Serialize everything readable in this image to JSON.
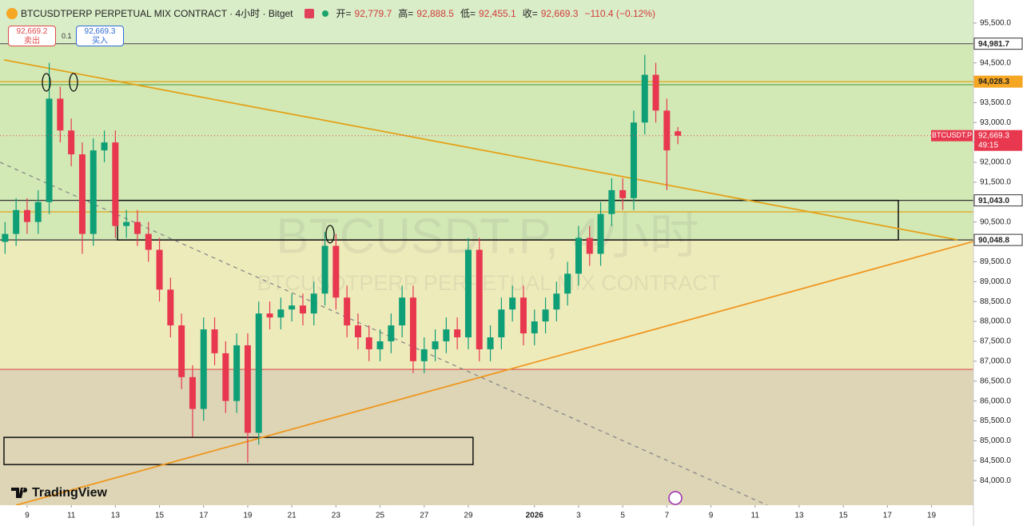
{
  "chart_data": {
    "type": "candlestick",
    "title": "BTCUSDTPERP PERPETUAL MIX CONTRACT · 4小时 · Bitget",
    "legend_keys": [
      "开=",
      "高=",
      "低=",
      "收="
    ],
    "legend_values": [
      92779.7,
      92888.5,
      92455.1,
      92669.3
    ],
    "legend_value_labels": [
      "92,779.7",
      "92,888.5",
      "92,455.1",
      "92,669.3"
    ],
    "change_label": "−110.4 (−0.12%)",
    "sell_price": "92,669.2",
    "sell_text": "卖出",
    "quantity": "0.1",
    "buy_price": "92,669.3",
    "buy_text": "买入",
    "watermark": "BTCUSDT.P, 4小时",
    "watermark_sub": "BTCUSDTPERP PERPETUAL MIX CONTRACT",
    "brand": "TradingView",
    "up_color": "#0f9f77",
    "down_color": "#e8384f",
    "open": [
      90000,
      90200,
      90800,
      90500,
      91000,
      93600,
      92800,
      92200,
      90200,
      92300,
      92500,
      90400,
      90500,
      90200,
      89800,
      88800,
      87900,
      86600,
      85800,
      87800,
      87200,
      86000,
      87400,
      85200,
      88200,
      88100,
      88300,
      88400,
      88200,
      88700,
      89900,
      88600,
      87900,
      87600,
      87300,
      87500,
      87900,
      88600,
      87000,
      87300,
      87500,
      87800,
      87600,
      89800,
      87300,
      87600,
      88300,
      88600,
      87700,
      88000,
      88300,
      88700,
      89200,
      90100,
      89700,
      90700,
      91300,
      91100,
      93000,
      94200,
      93300,
      92779.7
    ],
    "high": [
      90500,
      91100,
      91100,
      91300,
      94500,
      93900,
      93100,
      92500,
      92600,
      92800,
      92800,
      90800,
      90800,
      90500,
      90100,
      89100,
      88200,
      86900,
      88100,
      88100,
      87500,
      87700,
      87700,
      88500,
      88500,
      88600,
      88700,
      88700,
      89000,
      90250,
      90200,
      88900,
      88200,
      87900,
      87800,
      88200,
      88900,
      88900,
      87600,
      87800,
      88100,
      88100,
      90100,
      90100,
      87900,
      88600,
      88900,
      88900,
      88300,
      88600,
      89000,
      89500,
      90400,
      90400,
      91000,
      91600,
      91600,
      93300,
      94700,
      94500,
      93600,
      92888.5
    ],
    "low": [
      89700,
      89900,
      90200,
      90200,
      90700,
      92500,
      91900,
      89700,
      89900,
      92000,
      90100,
      90100,
      89900,
      89500,
      88500,
      87600,
      86300,
      85100,
      85500,
      86900,
      85700,
      85700,
      84450,
      84900,
      87800,
      87800,
      88000,
      87900,
      87900,
      88400,
      88300,
      87600,
      87300,
      87000,
      87000,
      87200,
      87600,
      86700,
      86700,
      87000,
      87200,
      87300,
      87300,
      87000,
      87000,
      87300,
      88000,
      87400,
      87400,
      87700,
      88000,
      88400,
      88900,
      89400,
      89400,
      90400,
      90800,
      90800,
      92700,
      93000,
      91300,
      92455.1
    ],
    "close": [
      90200,
      90800,
      90500,
      91000,
      93600,
      92800,
      92200,
      90200,
      92300,
      92500,
      90400,
      90500,
      90200,
      89800,
      88800,
      87900,
      86600,
      85800,
      87800,
      87200,
      86000,
      87400,
      85200,
      88200,
      88100,
      88300,
      88400,
      88200,
      88700,
      89900,
      88600,
      87900,
      87600,
      87300,
      87500,
      87900,
      88600,
      87000,
      87300,
      87500,
      87800,
      87600,
      89800,
      87300,
      87600,
      88300,
      88600,
      87700,
      88000,
      88300,
      88700,
      89200,
      90100,
      89700,
      90700,
      91300,
      91100,
      93000,
      94200,
      93300,
      92300,
      92669.3
    ],
    "xlim": [
      -0.46,
      87.8
    ],
    "xticks": [
      {
        "value": 2,
        "label": "9"
      },
      {
        "value": 6,
        "label": "11"
      },
      {
        "value": 10,
        "label": "13"
      },
      {
        "value": 14,
        "label": "15"
      },
      {
        "value": 18,
        "label": "17"
      },
      {
        "value": 22,
        "label": "19"
      },
      {
        "value": 26,
        "label": "21"
      },
      {
        "value": 30,
        "label": "23"
      },
      {
        "value": 34,
        "label": "25"
      },
      {
        "value": 38,
        "label": "27"
      },
      {
        "value": 42,
        "label": "29"
      },
      {
        "value": 48,
        "label": "2026"
      },
      {
        "value": 52,
        "label": "3"
      },
      {
        "value": 56,
        "label": "5"
      },
      {
        "value": 60,
        "label": "7"
      },
      {
        "value": 64,
        "label": "9"
      },
      {
        "value": 68,
        "label": "11"
      },
      {
        "value": 72,
        "label": "13"
      },
      {
        "value": 76,
        "label": "15"
      },
      {
        "value": 80,
        "label": "17"
      },
      {
        "value": 84,
        "label": "19"
      }
    ],
    "ylim": [
      83380,
      96080
    ],
    "yticks": [
      {
        "value": 95500,
        "label": "95,500.0"
      },
      {
        "value": 95000,
        "label": "95,000.0"
      },
      {
        "value": 94500,
        "label": "94,500.0"
      },
      {
        "value": 94000,
        "label": "94,000.0"
      },
      {
        "value": 93500,
        "label": "93,500.0"
      },
      {
        "value": 93000,
        "label": "93,000.0"
      },
      {
        "value": 92500,
        "label": "92,500.0"
      },
      {
        "value": 92000,
        "label": "92,000.0"
      },
      {
        "value": 91500,
        "label": "91,500.0"
      },
      {
        "value": 91000,
        "label": "91,000.0"
      },
      {
        "value": 90500,
        "label": "90,500.0"
      },
      {
        "value": 90000,
        "label": "90,000.0"
      },
      {
        "value": 89500,
        "label": "89,500.0"
      },
      {
        "value": 89000,
        "label": "89,000.0"
      },
      {
        "value": 88500,
        "label": "88,500.0"
      },
      {
        "value": 88000,
        "label": "88,000.0"
      },
      {
        "value": 87500,
        "label": "87,500.0"
      },
      {
        "value": 87000,
        "label": "87,000.0"
      },
      {
        "value": 86500,
        "label": "86,500.0"
      },
      {
        "value": 86000,
        "label": "86,000.0"
      },
      {
        "value": 85500,
        "label": "85,500.0"
      },
      {
        "value": 85000,
        "label": "85,000.0"
      },
      {
        "value": 84500,
        "label": "84,500.0"
      },
      {
        "value": 84000,
        "label": "84,000.0"
      }
    ],
    "background": "#d9edc8",
    "zones": [
      {
        "top": 94981.7,
        "bottom": 90048.8,
        "color": "#d3e9b5"
      },
      {
        "top": 90048.8,
        "bottom": 86795,
        "color": "#eeebbb"
      },
      {
        "top": 86795,
        "bottom": 83380,
        "color": "#ddd5b6"
      }
    ],
    "hlines": [
      {
        "value": 94981.7,
        "color": "#666666"
      },
      {
        "value": 94028.3,
        "color": "#e3a21a"
      },
      {
        "value": 93950,
        "color": "#6aa84f"
      },
      {
        "value": 91043,
        "color": "#333333"
      },
      {
        "value": 90755,
        "color": "#e3a21a"
      },
      {
        "value": 90048.8,
        "color": "#333333"
      },
      {
        "value": 86795,
        "color": "#d9534f"
      }
    ],
    "trendlines": [
      {
        "x": [
          -0.1,
          86.35
        ],
        "y": [
          94575,
          90052
        ],
        "color": "#e3a21a",
        "dash": false
      },
      {
        "x": [
          0.99,
          87.8
        ],
        "y": [
          83380,
          90010
        ],
        "color": "#f0961e",
        "dash": false
      },
      {
        "x": [
          -0.46,
          69.1
        ],
        "y": [
          92002,
          83380
        ],
        "color": "#888888",
        "dash": true
      }
    ],
    "boxes": [
      {
        "x": [
          10.19,
          80.99
        ],
        "y": [
          91043,
          90048.8
        ]
      },
      {
        "x": [
          -0.1,
          42.43
        ],
        "y": [
          85085,
          84402
        ]
      }
    ],
    "price_tags": [
      {
        "value": 94981.7,
        "label": "94,981.7",
        "bg": "#ffffff",
        "fg": "#222222"
      },
      {
        "value": 94028.3,
        "label": "94,028.3",
        "bg": "#f5a623",
        "fg": "#222222"
      },
      {
        "value": 91043,
        "label": "91,043.0",
        "bg": "#ffffff",
        "fg": "#222222"
      },
      {
        "value": 90048.8,
        "label": "90,048.8",
        "bg": "#ffffff",
        "fg": "#222222"
      }
    ],
    "last_price": {
      "name": "BTCUSDT.P",
      "value": 92669.3,
      "label": "92,669.3",
      "countdown": "49:15",
      "color": "#e8384f"
    }
  }
}
